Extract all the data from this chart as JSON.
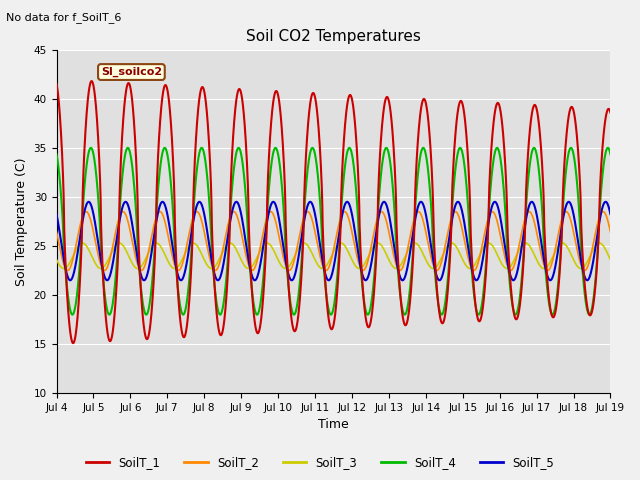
{
  "title": "Soil CO2 Temperatures",
  "subtitle": "No data for f_SoilT_6",
  "xlabel": "Time",
  "ylabel": "Soil Temperature (C)",
  "ylim": [
    10,
    45
  ],
  "yticks": [
    10,
    15,
    20,
    25,
    30,
    35,
    40,
    45
  ],
  "xlim_days": [
    4,
    19
  ],
  "xtick_labels": [
    "Jul 4",
    "Jul 5",
    "Jul 6",
    "Jul 7",
    "Jul 8",
    "Jul 9",
    "Jul 10",
    "Jul 11",
    "Jul 12",
    "Jul 13",
    "Jul 14",
    "Jul 15",
    "Jul 16",
    "Jul 17",
    "Jul 18",
    "Jul 19"
  ],
  "series_colors": {
    "SoilT_1": "#cc0000",
    "SoilT_2": "#ff8800",
    "SoilT_3": "#cccc00",
    "SoilT_4": "#00bb00",
    "SoilT_5": "#0000cc"
  },
  "legend_label": "Sl_soilco2",
  "fig_bg": "#f0f0f0",
  "plot_bg": "#e0e0e0",
  "grid_color": "#ffffff"
}
